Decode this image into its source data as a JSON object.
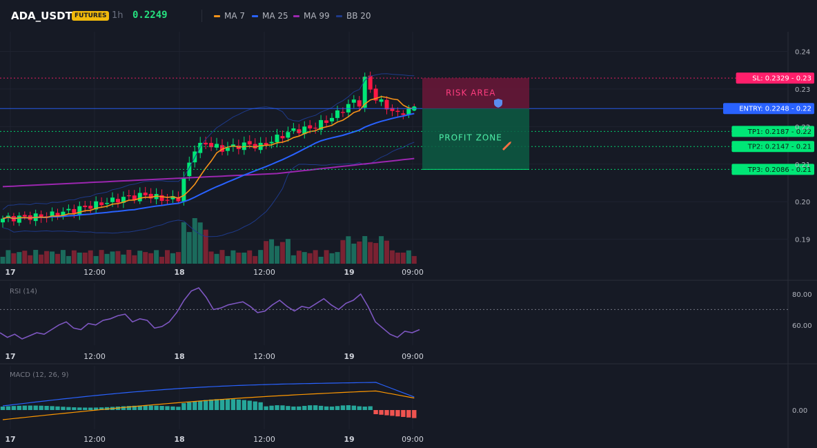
{
  "header": {
    "symbol": "ADA_USDT",
    "badge": "FUTURES",
    "timeframe": "1h",
    "price": "0.2249",
    "legend": [
      {
        "name": "MA 7",
        "color": "#f7931a"
      },
      {
        "name": "MA 25",
        "color": "#2962ff"
      },
      {
        "name": "MA 99",
        "color": "#9c27b0"
      },
      {
        "name": "BB 20",
        "color": "#1e3a8a"
      }
    ]
  },
  "colors": {
    "up": "#00e676",
    "down": "#ff1744",
    "volUp": "#1b6b5c",
    "volDown": "#7a2232",
    "rsi": "#7e57c2",
    "macd": "#2962ff",
    "signal": "#ff9800",
    "histUp": "#26a69a",
    "histDown": "#ef5350"
  },
  "chart_data": [
    {
      "type": "candlestick",
      "x_ticks": [
        "17",
        "12:00",
        "18",
        "12:00",
        "19",
        "09:00"
      ],
      "y_ticks": [
        "0.24",
        "0.23",
        "0.22",
        "0.21",
        "0.20",
        "0.19"
      ],
      "y_range": [
        0.1835,
        0.2445
      ],
      "levels": [
        {
          "label": "SL: 0.2329",
          "value": "0.23",
          "price": 0.2329,
          "color": "#ff1f6b",
          "style": "dotted"
        },
        {
          "label": "ENTRY: 0.2248",
          "value": "0.22",
          "price": 0.2248,
          "color": "#2962ff",
          "style": "solid"
        },
        {
          "label": "TP1: 0.2187",
          "value": "0.22",
          "price": 0.2187,
          "color": "#00e676",
          "style": "dotted"
        },
        {
          "label": "TP2: 0.2147",
          "value": "0.21",
          "price": 0.2147,
          "color": "#00e676",
          "style": "dotted"
        },
        {
          "label": "TP3: 0.2086",
          "value": "0.21",
          "price": 0.2086,
          "color": "#00e676",
          "style": "dotted"
        }
      ],
      "zones": {
        "risk": "RISK AREA",
        "risk_icon": "shield-icon",
        "profit": "PROFIT ZONE",
        "profit_icon": "rocket-icon"
      }
    },
    {
      "type": "line",
      "title": "RSI (14)",
      "y_ticks": [
        "80.00",
        "60.00"
      ],
      "reference": 70
    },
    {
      "type": "macd",
      "title": "MACD (12, 26, 9)",
      "y_ticks": [
        "0.00"
      ]
    }
  ]
}
